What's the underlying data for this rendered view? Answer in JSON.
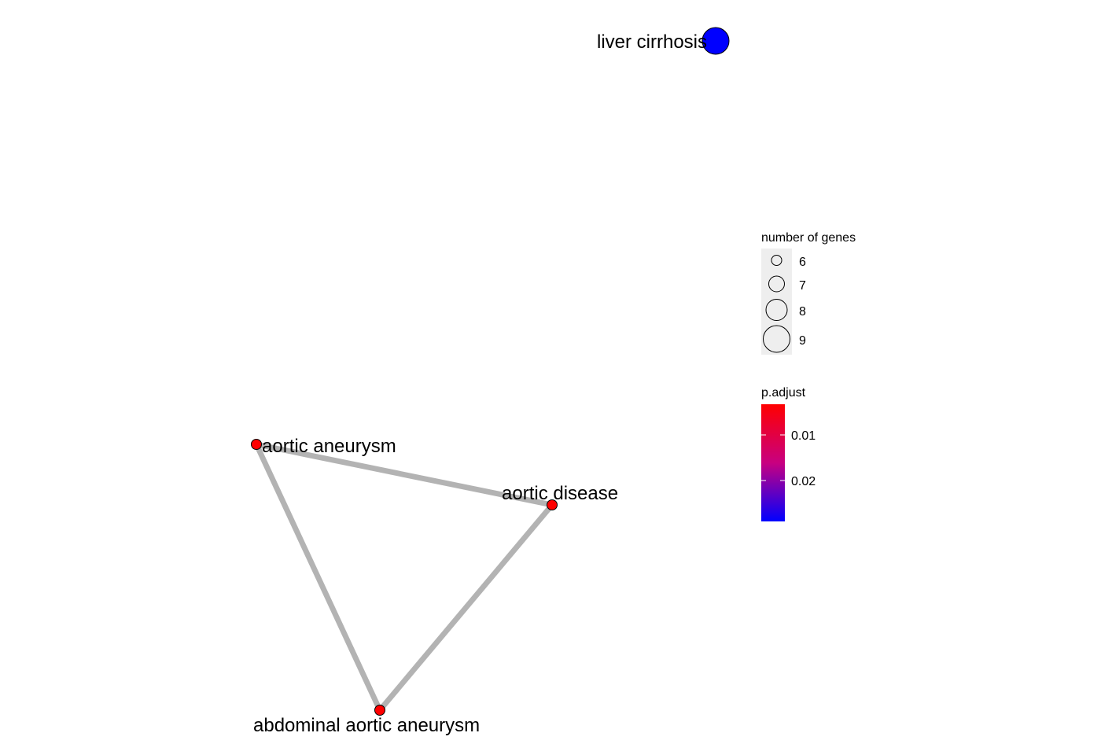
{
  "network": {
    "nodes": [
      {
        "id": "liver-cirrhosis",
        "label": "liver cirrhosis",
        "genes": 9,
        "p_adjust": 0.028,
        "color": "#0000FF"
      },
      {
        "id": "aortic-aneurysm",
        "label": "aortic aneurysm",
        "genes": 6,
        "p_adjust": 0.001,
        "color": "#FF0000"
      },
      {
        "id": "aortic-disease",
        "label": "aortic disease",
        "genes": 6,
        "p_adjust": 0.001,
        "color": "#FF0000"
      },
      {
        "id": "abdominal-aortic-aneurysm",
        "label": "abdominal aortic aneurysm",
        "genes": 6,
        "p_adjust": 0.001,
        "color": "#FF0000"
      }
    ],
    "edges": [
      {
        "source": "aortic-aneurysm",
        "target": "aortic-disease"
      },
      {
        "source": "aortic-aneurysm",
        "target": "abdominal-aortic-aneurysm"
      },
      {
        "source": "aortic-disease",
        "target": "abdominal-aortic-aneurysm"
      }
    ],
    "edge_color": "#B3B3B3"
  },
  "legend": {
    "size": {
      "title": "number of genes",
      "entries": [
        {
          "label": "6",
          "value": 6
        },
        {
          "label": "7",
          "value": 7
        },
        {
          "label": "8",
          "value": 8
        },
        {
          "label": "9",
          "value": 9
        }
      ]
    },
    "color": {
      "title": "p.adjust",
      "low_color": "#FF0000",
      "mid_color": "#C80080",
      "high_color": "#0000FF",
      "ticks": [
        {
          "label": "0.01",
          "value": 0.01
        },
        {
          "label": "0.02",
          "value": 0.02
        }
      ]
    }
  }
}
